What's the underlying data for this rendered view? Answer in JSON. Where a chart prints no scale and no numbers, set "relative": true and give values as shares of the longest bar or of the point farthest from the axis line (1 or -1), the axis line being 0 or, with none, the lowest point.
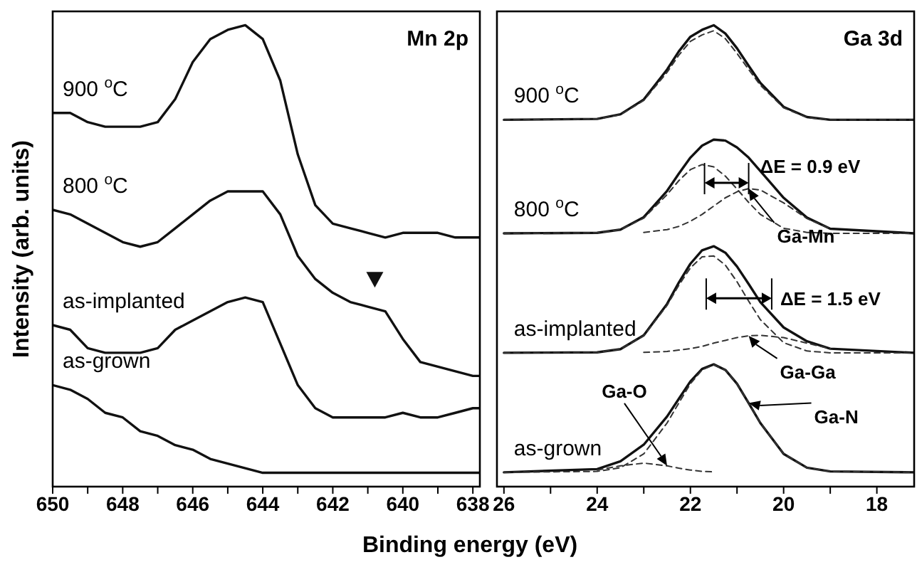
{
  "chart_data": [
    {
      "type": "line",
      "title": "Mn 2p",
      "ylabel": "Intensity (arb. units)",
      "xlabel": "Binding energy (eV)",
      "relative": true,
      "xlim": [
        650,
        637.8
      ],
      "xticks": [
        650,
        {
          "value": 649,
          "label": null
        },
        648,
        {
          "value": 647,
          "label": null
        },
        646,
        {
          "value": 645,
          "label": null
        },
        644,
        {
          "value": 643,
          "label": null
        },
        642,
        {
          "value": 641,
          "label": null
        },
        640,
        {
          "value": 639,
          "label": null
        },
        638
      ],
      "x": [
        650,
        649.5,
        649,
        648.5,
        648,
        647.5,
        647,
        646.5,
        646,
        645.5,
        645,
        644.5,
        644,
        643.5,
        643,
        642.5,
        642,
        641.5,
        641,
        640.5,
        640,
        639.5,
        639,
        638.5,
        638,
        637.8
      ],
      "series": [
        {
          "name": "900 $^{o}$C",
          "color": "#111111",
          "values": [
            0.81,
            0.81,
            0.79,
            0.78,
            0.78,
            0.78,
            0.79,
            0.84,
            0.92,
            0.97,
            0.99,
            1.0,
            0.97,
            0.88,
            0.72,
            0.61,
            0.57,
            0.56,
            0.55,
            0.54,
            0.55,
            0.55,
            0.55,
            0.54,
            0.54,
            0.54
          ]
        },
        {
          "name": "800 $^{o}$C",
          "color": "#111111",
          "values": [
            0.6,
            0.59,
            0.57,
            0.55,
            0.53,
            0.52,
            0.53,
            0.56,
            0.59,
            0.62,
            0.64,
            0.64,
            0.64,
            0.59,
            0.5,
            0.45,
            0.42,
            0.4,
            0.39,
            0.38,
            0.32,
            0.27,
            0.26,
            0.25,
            0.24,
            0.24
          ]
        },
        {
          "name": "as-implanted",
          "color": "#111111",
          "values": [
            0.35,
            0.34,
            0.3,
            0.29,
            0.29,
            0.29,
            0.3,
            0.34,
            0.36,
            0.38,
            0.4,
            0.41,
            0.4,
            0.31,
            0.22,
            0.17,
            0.15,
            0.15,
            0.15,
            0.15,
            0.16,
            0.15,
            0.15,
            0.16,
            0.17,
            0.17
          ]
        },
        {
          "name": "as-grown",
          "color": "#111111",
          "values": [
            0.22,
            0.21,
            0.19,
            0.16,
            0.15,
            0.12,
            0.11,
            0.09,
            0.08,
            0.06,
            0.05,
            0.04,
            0.03,
            0.03,
            0.03,
            0.03,
            0.03,
            0.03,
            0.03,
            0.03,
            0.03,
            0.03,
            0.03,
            0.03,
            0.03,
            0.03
          ]
        },
        {
          "type": "scatter",
          "marker": "triangle",
          "color": "#111111",
          "x": [
            640.8
          ],
          "values": [
            0.45
          ]
        }
      ]
    },
    {
      "type": "line",
      "title": "Ga 3d",
      "relative": true,
      "xlim": [
        26.15,
        17.2
      ],
      "xticks": [
        26,
        {
          "value": 25,
          "label": null
        },
        24,
        {
          "value": 23,
          "label": null
        },
        22,
        {
          "value": 21,
          "label": null
        },
        20,
        {
          "value": 19,
          "label": null
        },
        18
      ],
      "x": [
        26,
        24,
        23.5,
        23,
        22.5,
        22.25,
        22,
        21.75,
        21.5,
        21.25,
        21,
        20.75,
        20.5,
        20,
        19.5,
        19,
        17.2
      ],
      "series": [
        {
          "name": "900 $^{o}$C",
          "color": "#111111",
          "values": [
            0.795,
            0.797,
            0.807,
            0.839,
            0.904,
            0.943,
            0.975,
            0.99,
            1.0,
            0.982,
            0.95,
            0.912,
            0.875,
            0.823,
            0.801,
            0.795,
            0.795
          ]
        },
        {
          "color": "#333333",
          "line_style": "dashed",
          "values": [
            0.795,
            0.797,
            0.806,
            0.837,
            0.898,
            0.935,
            0.965,
            0.979,
            0.988,
            0.971,
            0.939,
            0.904,
            0.87,
            0.821,
            0.8,
            0.795,
            0.795
          ]
        },
        {
          "name": "800 $^{o}$C",
          "color": "#111111",
          "values": [
            0.549,
            0.55,
            0.557,
            0.584,
            0.641,
            0.678,
            0.713,
            0.739,
            0.752,
            0.75,
            0.735,
            0.713,
            0.684,
            0.626,
            0.583,
            0.559,
            0.549
          ]
        },
        {
          "color": "#333333",
          "line_style": "dashed",
          "values": [
            0.549,
            0.55,
            0.557,
            0.582,
            0.633,
            0.663,
            0.687,
            0.698,
            0.693,
            0.673,
            0.645,
            0.616,
            0.59,
            0.56,
            0.551,
            0.549,
            0.549
          ]
        },
        {
          "color": "#333333",
          "line_style": "dashed",
          "x": [
            23,
            22.5,
            22.25,
            22,
            21.75,
            21.5,
            21.25,
            21,
            20.75,
            20.5,
            20,
            19.5,
            19
          ],
          "values": [
            0.551,
            0.557,
            0.564,
            0.575,
            0.59,
            0.608,
            0.626,
            0.639,
            0.646,
            0.643,
            0.615,
            0.581,
            0.559
          ]
        },
        {
          "name": "as-implanted",
          "color": "#111111",
          "values": [
            0.29,
            0.291,
            0.298,
            0.328,
            0.396,
            0.442,
            0.483,
            0.512,
            0.521,
            0.507,
            0.477,
            0.439,
            0.4,
            0.345,
            0.315,
            0.299,
            0.29
          ]
        },
        {
          "color": "#333333",
          "line_style": "dashed",
          "values": [
            0.29,
            0.291,
            0.298,
            0.327,
            0.393,
            0.436,
            0.474,
            0.498,
            0.5,
            0.48,
            0.444,
            0.402,
            0.362,
            0.312,
            0.294,
            0.29,
            0.29
          ]
        },
        {
          "color": "#333333",
          "line_style": "dashed",
          "x": [
            23,
            22.5,
            22.25,
            22,
            21.75,
            21.5,
            21.25,
            21,
            20.75,
            20.5,
            20,
            19.5,
            19
          ],
          "values": [
            0.291,
            0.293,
            0.296,
            0.299,
            0.304,
            0.311,
            0.317,
            0.323,
            0.327,
            0.328,
            0.323,
            0.311,
            0.299
          ]
        },
        {
          "name": "as-grown",
          "color": "#111111",
          "values": [
            0.031,
            0.038,
            0.055,
            0.091,
            0.152,
            0.19,
            0.228,
            0.255,
            0.265,
            0.253,
            0.223,
            0.181,
            0.138,
            0.071,
            0.041,
            0.033,
            0.031
          ]
        },
        {
          "color": "#333333",
          "line_style": "dashed",
          "values": [
            0.031,
            0.033,
            0.041,
            0.071,
            0.138,
            0.181,
            0.223,
            0.253,
            0.264,
            0.253,
            0.223,
            0.181,
            0.138,
            0.071,
            0.041,
            0.033,
            0.031
          ]
        },
        {
          "color": "#333333",
          "line_style": "dashed",
          "x": [
            24,
            23.5,
            23,
            22.5,
            22.25,
            22,
            21.75,
            21.5
          ],
          "values": [
            0.036,
            0.045,
            0.051,
            0.045,
            0.04,
            0.036,
            0.033,
            0.032
          ]
        }
      ],
      "annotations": [
        {
          "text": "ΔE = 0.9 eV",
          "x": 20.75,
          "y": 0.646
        },
        {
          "text": "Ga-Mn",
          "x": 20.75,
          "y": 0.646
        },
        {
          "text": "ΔE = 1.5 eV",
          "x": 20.5,
          "y": 0.328
        },
        {
          "text": "Ga-Ga",
          "x": 20.75,
          "y": 0.327
        },
        {
          "text": "Ga-O",
          "x": 22.5,
          "y": 0.045
        },
        {
          "text": "Ga-N",
          "x": 20.75,
          "y": 0.181
        }
      ]
    }
  ]
}
